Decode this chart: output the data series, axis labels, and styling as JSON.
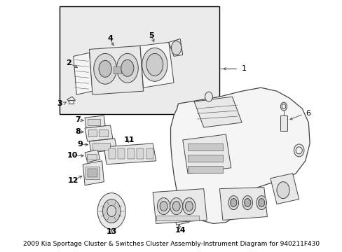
{
  "title": "2009 Kia Sportage Cluster & Switches Cluster Assembly-Instrument Diagram for 940211F430",
  "bg_color": "#ffffff",
  "line_color": "#444444",
  "text_color": "#000000",
  "fill_light": "#f5f5f5",
  "fill_mid": "#e8e8e8",
  "fill_dark": "#d8d8d8",
  "inset_fill": "#ebebeb",
  "lw": 0.7,
  "font_size_labels": 8,
  "font_size_title": 6.5
}
